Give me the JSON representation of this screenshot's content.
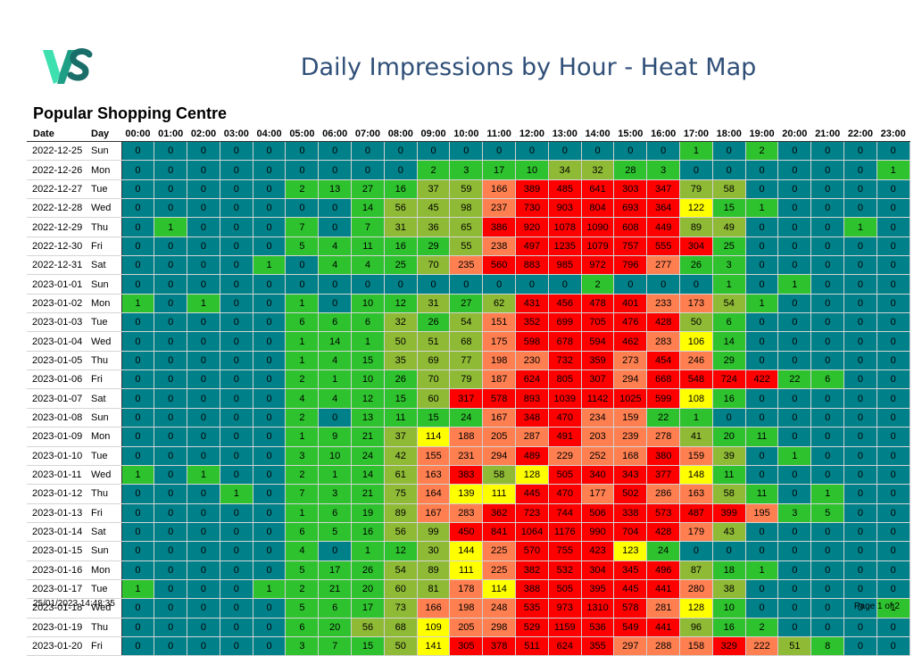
{
  "header": {
    "title": "Daily Impressions by Hour - Heat Map",
    "subtitle": "Popular Shopping Centre",
    "logo_text": "VS"
  },
  "table": {
    "col_date": "Date",
    "col_day": "Day",
    "hours": [
      "00:00",
      "01:00",
      "02:00",
      "03:00",
      "04:00",
      "05:00",
      "06:00",
      "07:00",
      "08:00",
      "09:00",
      "10:00",
      "11:00",
      "12:00",
      "13:00",
      "14:00",
      "15:00",
      "16:00",
      "17:00",
      "18:00",
      "19:00",
      "20:00",
      "21:00",
      "22:00",
      "23:00"
    ],
    "rows": [
      {
        "date": "2022-12-25",
        "day": "Sun",
        "values": [
          0,
          0,
          0,
          0,
          0,
          0,
          0,
          0,
          0,
          0,
          0,
          0,
          0,
          0,
          0,
          0,
          0,
          1,
          0,
          2,
          0,
          0,
          0,
          0
        ]
      },
      {
        "date": "2022-12-26",
        "day": "Mon",
        "values": [
          0,
          0,
          0,
          0,
          0,
          0,
          0,
          0,
          0,
          2,
          3,
          17,
          10,
          34,
          32,
          28,
          3,
          0,
          0,
          0,
          0,
          0,
          0,
          1
        ]
      },
      {
        "date": "2022-12-27",
        "day": "Tue",
        "values": [
          0,
          0,
          0,
          0,
          0,
          2,
          13,
          27,
          16,
          37,
          59,
          166,
          389,
          485,
          641,
          303,
          347,
          79,
          58,
          0,
          0,
          0,
          0,
          0
        ]
      },
      {
        "date": "2022-12-28",
        "day": "Wed",
        "values": [
          0,
          0,
          0,
          0,
          0,
          0,
          0,
          14,
          56,
          45,
          98,
          237,
          730,
          903,
          804,
          693,
          364,
          122,
          15,
          1,
          0,
          0,
          0,
          0
        ]
      },
      {
        "date": "2022-12-29",
        "day": "Thu",
        "values": [
          0,
          1,
          0,
          0,
          0,
          7,
          0,
          7,
          31,
          36,
          65,
          386,
          920,
          1078,
          1090,
          608,
          449,
          89,
          49,
          0,
          0,
          0,
          1,
          0
        ]
      },
      {
        "date": "2022-12-30",
        "day": "Fri",
        "values": [
          0,
          0,
          0,
          0,
          0,
          5,
          4,
          11,
          16,
          29,
          55,
          238,
          497,
          1235,
          1079,
          757,
          555,
          304,
          25,
          0,
          0,
          0,
          0,
          0
        ]
      },
      {
        "date": "2022-12-31",
        "day": "Sat",
        "values": [
          0,
          0,
          0,
          0,
          1,
          0,
          4,
          4,
          25,
          70,
          235,
          560,
          883,
          985,
          972,
          796,
          277,
          26,
          3,
          0,
          0,
          0,
          0,
          0
        ]
      },
      {
        "date": "2023-01-01",
        "day": "Sun",
        "values": [
          0,
          0,
          0,
          0,
          0,
          0,
          0,
          0,
          0,
          0,
          0,
          0,
          0,
          0,
          2,
          0,
          0,
          0,
          1,
          0,
          1,
          0,
          0,
          0
        ]
      },
      {
        "date": "2023-01-02",
        "day": "Mon",
        "values": [
          1,
          0,
          1,
          0,
          0,
          1,
          0,
          10,
          12,
          31,
          27,
          62,
          431,
          456,
          478,
          401,
          233,
          173,
          54,
          1,
          0,
          0,
          0,
          0
        ]
      },
      {
        "date": "2023-01-03",
        "day": "Tue",
        "values": [
          0,
          0,
          0,
          0,
          0,
          6,
          6,
          6,
          32,
          26,
          54,
          151,
          352,
          699,
          705,
          476,
          428,
          50,
          6,
          0,
          0,
          0,
          0,
          0
        ]
      },
      {
        "date": "2023-01-04",
        "day": "Wed",
        "values": [
          0,
          0,
          0,
          0,
          0,
          1,
          14,
          1,
          50,
          51,
          68,
          175,
          598,
          678,
          594,
          462,
          283,
          106,
          14,
          0,
          0,
          0,
          0,
          0
        ]
      },
      {
        "date": "2023-01-05",
        "day": "Thu",
        "values": [
          0,
          0,
          0,
          0,
          0,
          1,
          4,
          15,
          35,
          69,
          77,
          198,
          230,
          732,
          359,
          273,
          454,
          246,
          29,
          0,
          0,
          0,
          0,
          0
        ]
      },
      {
        "date": "2023-01-06",
        "day": "Fri",
        "values": [
          0,
          0,
          0,
          0,
          0,
          2,
          1,
          10,
          26,
          70,
          79,
          187,
          624,
          805,
          307,
          294,
          668,
          548,
          724,
          422,
          22,
          6,
          0,
          0
        ]
      },
      {
        "date": "2023-01-07",
        "day": "Sat",
        "values": [
          0,
          0,
          0,
          0,
          0,
          4,
          4,
          12,
          15,
          60,
          317,
          578,
          893,
          1039,
          1142,
          1025,
          599,
          108,
          16,
          0,
          0,
          0,
          0,
          0
        ]
      },
      {
        "date": "2023-01-08",
        "day": "Sun",
        "values": [
          0,
          0,
          0,
          0,
          0,
          2,
          0,
          13,
          11,
          15,
          24,
          167,
          348,
          470,
          234,
          159,
          22,
          1,
          0,
          0,
          0,
          0,
          0,
          0
        ]
      },
      {
        "date": "2023-01-09",
        "day": "Mon",
        "values": [
          0,
          0,
          0,
          0,
          0,
          1,
          9,
          21,
          37,
          114,
          188,
          205,
          287,
          491,
          203,
          239,
          278,
          41,
          20,
          11,
          0,
          0,
          0,
          0
        ]
      },
      {
        "date": "2023-01-10",
        "day": "Tue",
        "values": [
          0,
          0,
          0,
          0,
          0,
          3,
          10,
          24,
          42,
          155,
          231,
          294,
          489,
          229,
          252,
          168,
          380,
          159,
          39,
          0,
          1,
          0,
          0,
          0
        ]
      },
      {
        "date": "2023-01-11",
        "day": "Wed",
        "values": [
          1,
          0,
          1,
          0,
          0,
          2,
          1,
          14,
          61,
          163,
          383,
          58,
          128,
          505,
          340,
          343,
          377,
          148,
          11,
          0,
          0,
          0,
          0,
          0
        ]
      },
      {
        "date": "2023-01-12",
        "day": "Thu",
        "values": [
          0,
          0,
          0,
          1,
          0,
          7,
          3,
          21,
          75,
          164,
          139,
          111,
          445,
          470,
          177,
          502,
          286,
          163,
          58,
          11,
          0,
          1,
          0,
          0
        ]
      },
      {
        "date": "2023-01-13",
        "day": "Fri",
        "values": [
          0,
          0,
          0,
          0,
          0,
          1,
          6,
          19,
          89,
          167,
          283,
          362,
          723,
          744,
          506,
          338,
          573,
          487,
          399,
          195,
          3,
          5,
          0,
          0
        ]
      },
      {
        "date": "2023-01-14",
        "day": "Sat",
        "values": [
          0,
          0,
          0,
          0,
          0,
          6,
          5,
          16,
          56,
          99,
          450,
          841,
          1064,
          1176,
          990,
          704,
          428,
          179,
          43,
          0,
          0,
          0,
          0,
          0
        ]
      },
      {
        "date": "2023-01-15",
        "day": "Sun",
        "values": [
          0,
          0,
          0,
          0,
          0,
          4,
          0,
          1,
          12,
          30,
          144,
          225,
          570,
          755,
          423,
          123,
          24,
          0,
          0,
          0,
          0,
          0,
          0,
          0
        ]
      },
      {
        "date": "2023-01-16",
        "day": "Mon",
        "values": [
          0,
          0,
          0,
          0,
          0,
          5,
          17,
          26,
          54,
          89,
          111,
          225,
          382,
          532,
          304,
          345,
          496,
          87,
          18,
          1,
          0,
          0,
          0,
          0
        ]
      },
      {
        "date": "2023-01-17",
        "day": "Tue",
        "values": [
          1,
          0,
          0,
          0,
          1,
          2,
          21,
          20,
          60,
          81,
          178,
          114,
          388,
          505,
          395,
          445,
          441,
          280,
          38,
          0,
          0,
          0,
          0,
          0
        ]
      },
      {
        "date": "2023-01-18",
        "day": "Wed",
        "values": [
          0,
          0,
          0,
          0,
          0,
          5,
          6,
          17,
          73,
          166,
          198,
          248,
          535,
          973,
          1310,
          578,
          281,
          128,
          10,
          0,
          0,
          0,
          0,
          1
        ]
      },
      {
        "date": "2023-01-19",
        "day": "Thu",
        "values": [
          0,
          0,
          0,
          0,
          0,
          6,
          20,
          56,
          68,
          109,
          205,
          298,
          529,
          1159,
          536,
          549,
          441,
          96,
          16,
          2,
          0,
          0,
          0,
          0
        ]
      },
      {
        "date": "2023-01-20",
        "day": "Fri",
        "values": [
          0,
          0,
          0,
          0,
          0,
          3,
          7,
          15,
          50,
          141,
          305,
          378,
          511,
          624,
          355,
          297,
          288,
          158,
          329,
          222,
          51,
          8,
          0,
          0
        ]
      }
    ]
  },
  "footer": {
    "timestamp": "25/01/2023 14:48:35",
    "page": "Page 1 of 2"
  },
  "colors": {
    "zero": "#00818a",
    "low": "#2ec32e",
    "lowmid": "#8fba35",
    "mid": "#ffff00",
    "midhigh": "#ff7f50",
    "high": "#ff0000",
    "logo_light": "#3fe0b0",
    "logo_dark": "#1a6e6a",
    "title": "#2f4f78"
  }
}
